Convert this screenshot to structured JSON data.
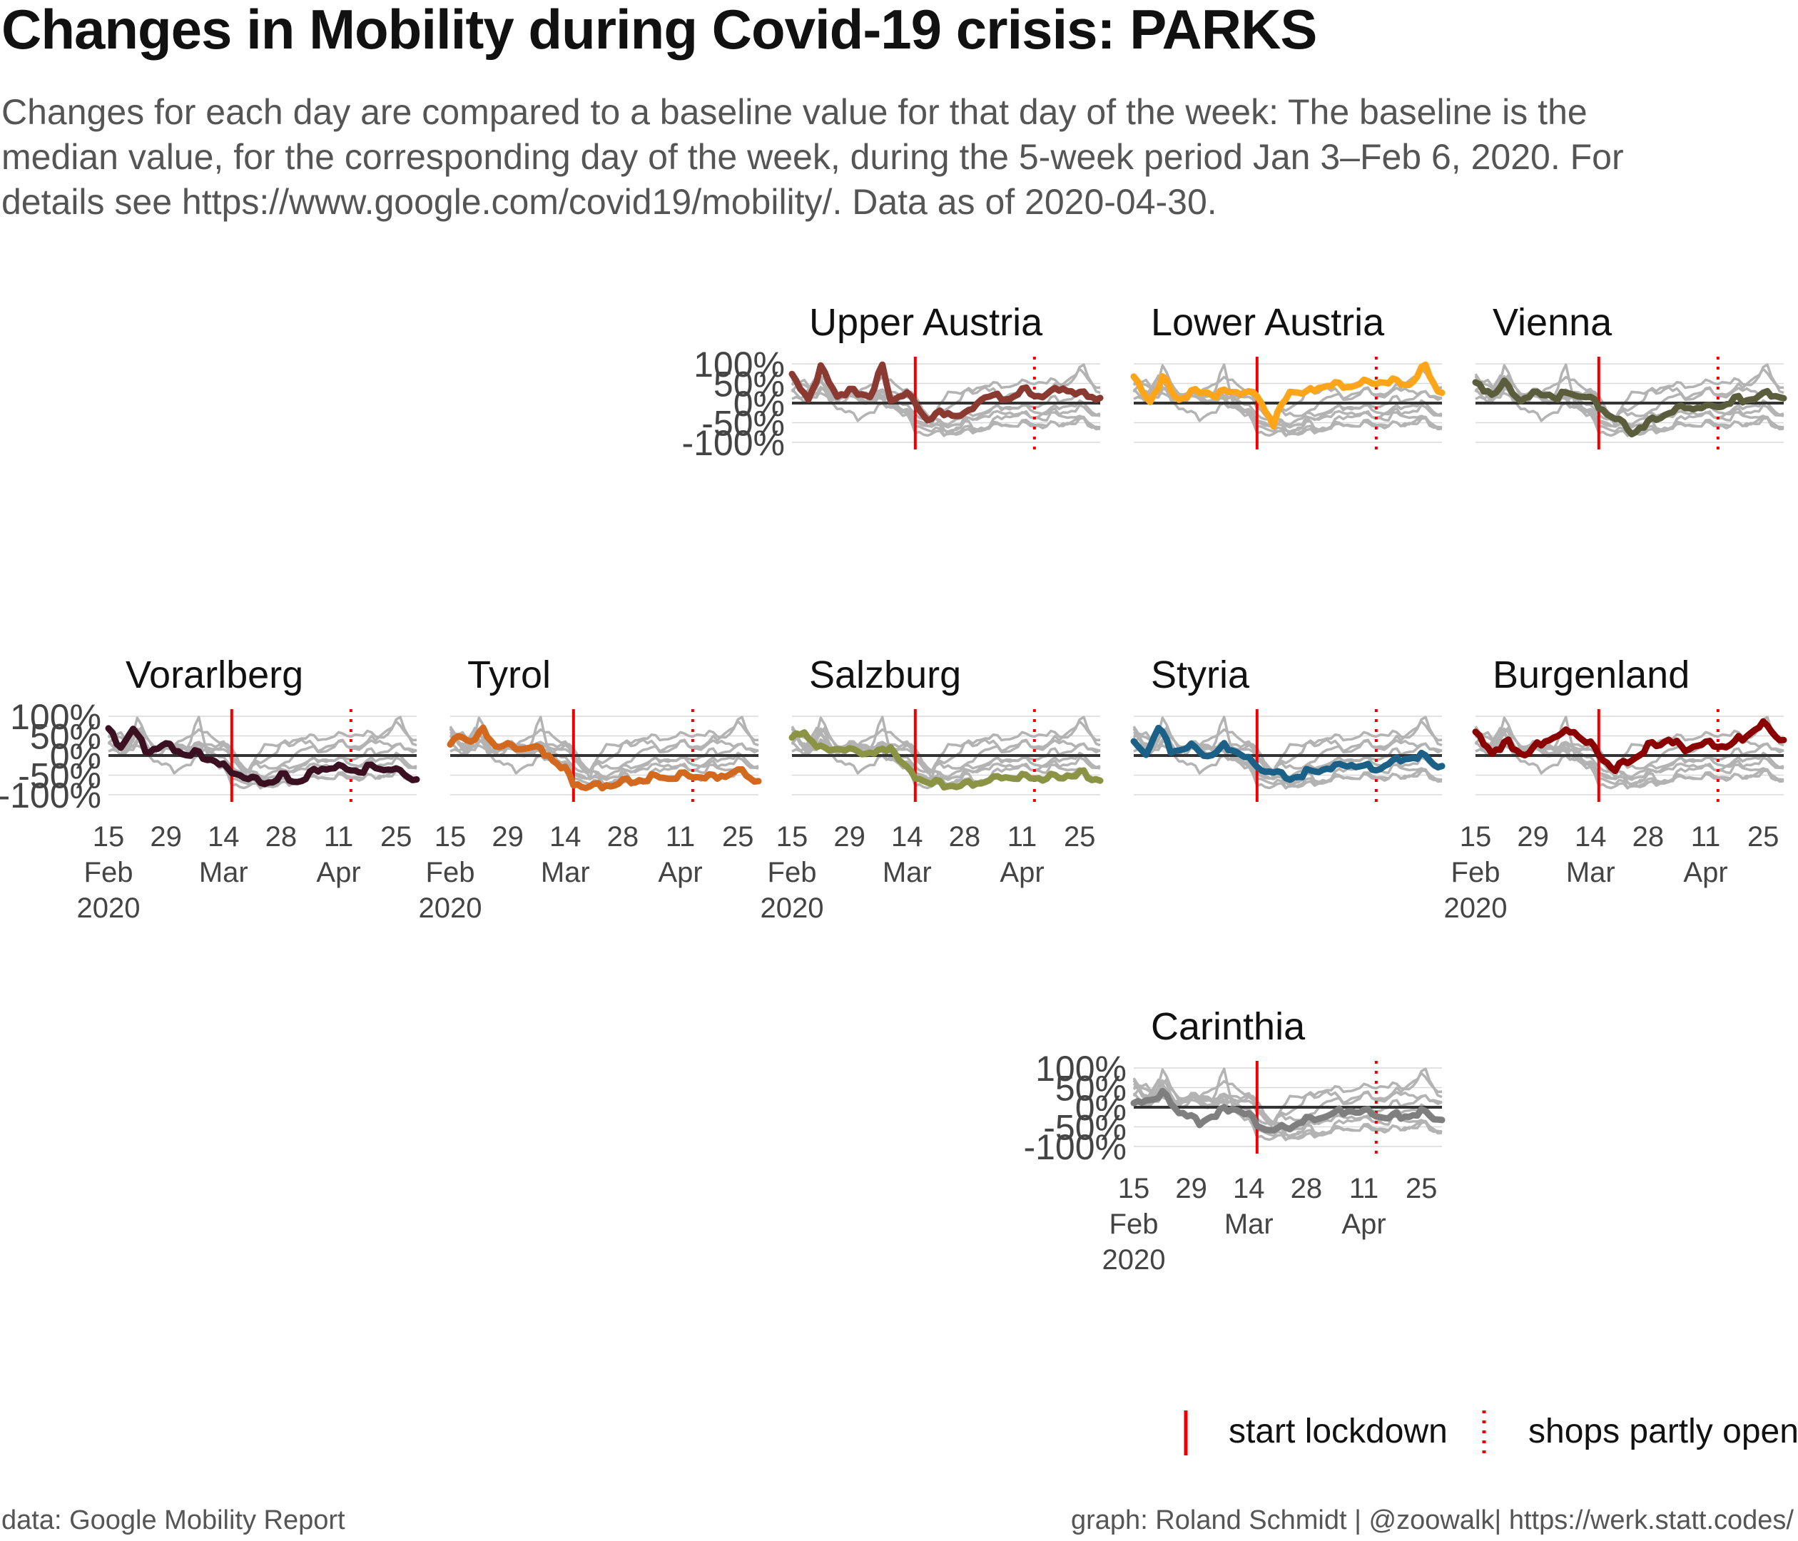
{
  "title": "Changes in Mobility during Covid-19 crisis: PARKS",
  "subtitle_lines": [
    "Changes for each day are compared to a baseline value for that day of the week: The baseline is the",
    "median value, for the corresponding day of the week, during the 5-week period Jan 3–Feb 6, 2020. For",
    "details see https://www.google.com/covid19/mobility/. Data as of 2020-04-30."
  ],
  "caption_left": "data: Google Mobility Report",
  "caption_right": "graph: Roland Schmidt | @zoowalk| https://werk.statt.codes/",
  "legend": {
    "lockdown_label": "start lockdown",
    "shops_label": "shops partly open",
    "line_color": "#ee0000"
  },
  "chart_data": {
    "type": "line",
    "x_range": [
      "2020-02-15",
      "2020-04-30"
    ],
    "lockdown_date": "2020-03-16",
    "shops_open_date": "2020-04-14",
    "ylim": [
      -100,
      100
    ],
    "y_ticks": [
      100,
      50,
      0,
      -50,
      -100
    ],
    "y_tick_labels": [
      "100%",
      "50%",
      "0%",
      "-50%",
      "-100%"
    ],
    "x_ticks": [
      "2020-02-15",
      "2020-02-29",
      "2020-03-14",
      "2020-03-28",
      "2020-04-11",
      "2020-04-25"
    ],
    "x_tick_labels": [
      [
        "15",
        "Feb",
        "2020"
      ],
      [
        "29",
        "",
        ""
      ],
      [
        "14",
        "Mar",
        ""
      ],
      [
        "28",
        "",
        ""
      ],
      [
        "11",
        "Apr",
        ""
      ],
      [
        "25",
        "",
        ""
      ]
    ],
    "context_color": "#b3b3b3",
    "zero_line_color": "#333333",
    "grid": true,
    "series": [
      {
        "name": "Upper Austria",
        "color": "#8b3a32",
        "key_points": [
          [
            "2020-02-15",
            65
          ],
          [
            "2020-02-19",
            10
          ],
          [
            "2020-02-22",
            85
          ],
          [
            "2020-02-26",
            20
          ],
          [
            "2020-03-01",
            30
          ],
          [
            "2020-03-05",
            15
          ],
          [
            "2020-03-08",
            95
          ],
          [
            "2020-03-10",
            10
          ],
          [
            "2020-03-14",
            20
          ],
          [
            "2020-03-16",
            0
          ],
          [
            "2020-03-19",
            -40
          ],
          [
            "2020-03-24",
            -25
          ],
          [
            "2020-03-28",
            -35
          ],
          [
            "2020-04-02",
            20
          ],
          [
            "2020-04-07",
            10
          ],
          [
            "2020-04-11",
            30
          ],
          [
            "2020-04-16",
            20
          ],
          [
            "2020-04-21",
            40
          ],
          [
            "2020-04-25",
            20
          ],
          [
            "2020-04-29",
            15
          ]
        ]
      },
      {
        "name": "Lower Austria",
        "color": "#ffa51a",
        "key_points": [
          [
            "2020-02-15",
            60
          ],
          [
            "2020-02-19",
            5
          ],
          [
            "2020-02-22",
            60
          ],
          [
            "2020-02-26",
            10
          ],
          [
            "2020-03-02",
            30
          ],
          [
            "2020-03-06",
            20
          ],
          [
            "2020-03-10",
            30
          ],
          [
            "2020-03-14",
            25
          ],
          [
            "2020-03-16",
            20
          ],
          [
            "2020-03-20",
            -55
          ],
          [
            "2020-03-24",
            35
          ],
          [
            "2020-03-28",
            20
          ],
          [
            "2020-04-02",
            50
          ],
          [
            "2020-04-06",
            40
          ],
          [
            "2020-04-11",
            50
          ],
          [
            "2020-04-16",
            55
          ],
          [
            "2020-04-22",
            50
          ],
          [
            "2020-04-26",
            90
          ],
          [
            "2020-04-29",
            30
          ]
        ]
      },
      {
        "name": "Vienna",
        "color": "#5b5e3c",
        "key_points": [
          [
            "2020-02-15",
            45
          ],
          [
            "2020-02-19",
            25
          ],
          [
            "2020-02-22",
            50
          ],
          [
            "2020-02-26",
            10
          ],
          [
            "2020-03-02",
            25
          ],
          [
            "2020-03-06",
            15
          ],
          [
            "2020-03-10",
            25
          ],
          [
            "2020-03-14",
            10
          ],
          [
            "2020-03-16",
            -10
          ],
          [
            "2020-03-20",
            -40
          ],
          [
            "2020-03-24",
            -75
          ],
          [
            "2020-03-28",
            -50
          ],
          [
            "2020-04-02",
            -25
          ],
          [
            "2020-04-06",
            -10
          ],
          [
            "2020-04-11",
            -15
          ],
          [
            "2020-04-16",
            0
          ],
          [
            "2020-04-21",
            10
          ],
          [
            "2020-04-25",
            20
          ],
          [
            "2020-04-29",
            15
          ]
        ]
      },
      {
        "name": "Vorarlberg",
        "color": "#3b1020",
        "key_points": [
          [
            "2020-02-15",
            60
          ],
          [
            "2020-02-18",
            20
          ],
          [
            "2020-02-21",
            70
          ],
          [
            "2020-02-24",
            10
          ],
          [
            "2020-02-28",
            25
          ],
          [
            "2020-03-03",
            10
          ],
          [
            "2020-03-08",
            0
          ],
          [
            "2020-03-12",
            -15
          ],
          [
            "2020-03-16",
            -45
          ],
          [
            "2020-03-20",
            -55
          ],
          [
            "2020-03-24",
            -70
          ],
          [
            "2020-03-28",
            -55
          ],
          [
            "2020-04-02",
            -65
          ],
          [
            "2020-04-06",
            -35
          ],
          [
            "2020-04-11",
            -30
          ],
          [
            "2020-04-16",
            -40
          ],
          [
            "2020-04-21",
            -30
          ],
          [
            "2020-04-25",
            -40
          ],
          [
            "2020-04-29",
            -60
          ]
        ]
      },
      {
        "name": "Tyrol",
        "color": "#d2691e",
        "key_points": [
          [
            "2020-02-15",
            20
          ],
          [
            "2020-02-17",
            50
          ],
          [
            "2020-02-20",
            40
          ],
          [
            "2020-02-23",
            60
          ],
          [
            "2020-02-26",
            30
          ],
          [
            "2020-03-02",
            15
          ],
          [
            "2020-03-06",
            20
          ],
          [
            "2020-03-10",
            0
          ],
          [
            "2020-03-14",
            -40
          ],
          [
            "2020-03-16",
            -70
          ],
          [
            "2020-03-20",
            -80
          ],
          [
            "2020-03-26",
            -75
          ],
          [
            "2020-04-02",
            -60
          ],
          [
            "2020-04-08",
            -55
          ],
          [
            "2020-04-14",
            -50
          ],
          [
            "2020-04-20",
            -55
          ],
          [
            "2020-04-25",
            -40
          ],
          [
            "2020-04-29",
            -60
          ]
        ]
      },
      {
        "name": "Salzburg",
        "color": "#8b9445",
        "key_points": [
          [
            "2020-02-15",
            40
          ],
          [
            "2020-02-18",
            60
          ],
          [
            "2020-02-22",
            15
          ],
          [
            "2020-02-26",
            20
          ],
          [
            "2020-03-02",
            10
          ],
          [
            "2020-03-06",
            5
          ],
          [
            "2020-03-10",
            20
          ],
          [
            "2020-03-14",
            -35
          ],
          [
            "2020-03-16",
            -55
          ],
          [
            "2020-03-20",
            -70
          ],
          [
            "2020-03-26",
            -80
          ],
          [
            "2020-04-02",
            -65
          ],
          [
            "2020-04-08",
            -55
          ],
          [
            "2020-04-14",
            -60
          ],
          [
            "2020-04-20",
            -55
          ],
          [
            "2020-04-25",
            -45
          ],
          [
            "2020-04-29",
            -60
          ]
        ]
      },
      {
        "name": "Styria",
        "color": "#1b6187",
        "key_points": [
          [
            "2020-02-15",
            25
          ],
          [
            "2020-02-18",
            5
          ],
          [
            "2020-02-21",
            75
          ],
          [
            "2020-02-24",
            10
          ],
          [
            "2020-02-29",
            20
          ],
          [
            "2020-03-04",
            0
          ],
          [
            "2020-03-08",
            20
          ],
          [
            "2020-03-12",
            5
          ],
          [
            "2020-03-16",
            -30
          ],
          [
            "2020-03-20",
            -40
          ],
          [
            "2020-03-24",
            -60
          ],
          [
            "2020-03-28",
            -45
          ],
          [
            "2020-04-02",
            -30
          ],
          [
            "2020-04-08",
            -25
          ],
          [
            "2020-04-14",
            -35
          ],
          [
            "2020-04-20",
            -10
          ],
          [
            "2020-04-25",
            0
          ],
          [
            "2020-04-29",
            -25
          ]
        ]
      },
      {
        "name": "Burgenland",
        "color": "#8b0000",
        "key_points": [
          [
            "2020-02-15",
            50
          ],
          [
            "2020-02-19",
            10
          ],
          [
            "2020-02-23",
            30
          ],
          [
            "2020-02-27",
            0
          ],
          [
            "2020-03-02",
            30
          ],
          [
            "2020-03-06",
            50
          ],
          [
            "2020-03-10",
            60
          ],
          [
            "2020-03-14",
            30
          ],
          [
            "2020-03-16",
            0
          ],
          [
            "2020-03-20",
            -35
          ],
          [
            "2020-03-24",
            -10
          ],
          [
            "2020-03-28",
            20
          ],
          [
            "2020-04-02",
            40
          ],
          [
            "2020-04-06",
            15
          ],
          [
            "2020-04-11",
            30
          ],
          [
            "2020-04-16",
            20
          ],
          [
            "2020-04-21",
            50
          ],
          [
            "2020-04-25",
            80
          ],
          [
            "2020-04-29",
            40
          ]
        ]
      },
      {
        "name": "Carinthia",
        "color": "#7f7f7f",
        "key_points": [
          [
            "2020-02-15",
            5
          ],
          [
            "2020-02-19",
            20
          ],
          [
            "2020-02-22",
            30
          ],
          [
            "2020-02-26",
            -10
          ],
          [
            "2020-03-02",
            -40
          ],
          [
            "2020-03-06",
            -20
          ],
          [
            "2020-03-10",
            0
          ],
          [
            "2020-03-14",
            -20
          ],
          [
            "2020-03-16",
            -45
          ],
          [
            "2020-03-20",
            -60
          ],
          [
            "2020-03-24",
            -50
          ],
          [
            "2020-03-28",
            -35
          ],
          [
            "2020-04-02",
            -20
          ],
          [
            "2020-04-08",
            -10
          ],
          [
            "2020-04-14",
            -20
          ],
          [
            "2020-04-20",
            -25
          ],
          [
            "2020-04-25",
            -15
          ],
          [
            "2020-04-29",
            -30
          ]
        ]
      }
    ]
  }
}
